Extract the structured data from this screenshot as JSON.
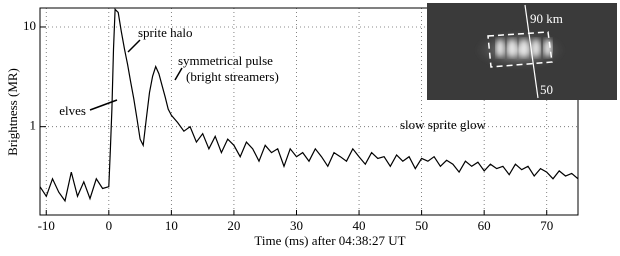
{
  "chart_data": {
    "type": "line",
    "xlabel": "Time (ms) after 04:38:27 UT",
    "ylabel": "Brightness (MR)",
    "x": [
      -11,
      -10,
      -9,
      -8,
      -7,
      -6,
      -5,
      -4,
      -3,
      -2,
      -1,
      0,
      0.25,
      0.5,
      0.75,
      1,
      1.5,
      2,
      2.5,
      3,
      3.5,
      4,
      4.5,
      5,
      5.5,
      6,
      6.5,
      7,
      7.5,
      8,
      8.5,
      9,
      9.5,
      10,
      11,
      12,
      13,
      14,
      15,
      16,
      17,
      18,
      19,
      20,
      21,
      22,
      23,
      24,
      25,
      26,
      27,
      28,
      29,
      30,
      31,
      32,
      33,
      34,
      35,
      36,
      37,
      38,
      39,
      40,
      41,
      42,
      43,
      44,
      45,
      46,
      47,
      48,
      49,
      50,
      51,
      52,
      53,
      54,
      55,
      56,
      57,
      58,
      59,
      60,
      61,
      62,
      63,
      64,
      65,
      66,
      67,
      68,
      69,
      70,
      71,
      72,
      73,
      74,
      75
    ],
    "values": [
      0.25,
      0.2,
      0.3,
      0.22,
      0.18,
      0.35,
      0.2,
      0.28,
      0.19,
      0.3,
      0.24,
      0.25,
      0.6,
      1.5,
      6,
      15,
      14,
      9,
      6,
      4.2,
      2.8,
      1.9,
      1.2,
      0.75,
      0.65,
      1.2,
      2.2,
      3.2,
      4,
      3.4,
      2.6,
      2,
      1.5,
      1.3,
      1.1,
      0.9,
      1.0,
      0.7,
      0.85,
      0.6,
      0.8,
      0.55,
      0.75,
      0.65,
      0.5,
      0.7,
      0.6,
      0.45,
      0.65,
      0.55,
      0.6,
      0.4,
      0.6,
      0.5,
      0.55,
      0.45,
      0.6,
      0.5,
      0.4,
      0.55,
      0.5,
      0.45,
      0.6,
      0.5,
      0.42,
      0.55,
      0.48,
      0.5,
      0.4,
      0.52,
      0.45,
      0.5,
      0.38,
      0.48,
      0.45,
      0.5,
      0.4,
      0.46,
      0.42,
      0.35,
      0.45,
      0.4,
      0.44,
      0.36,
      0.42,
      0.38,
      0.4,
      0.33,
      0.42,
      0.37,
      0.4,
      0.32,
      0.38,
      0.35,
      0.3,
      0.36,
      0.32,
      0.34,
      0.3
    ],
    "color": "#000000",
    "xlim": [
      -11,
      75
    ],
    "xticks": [
      -10,
      0,
      10,
      20,
      30,
      40,
      50,
      60,
      70
    ],
    "ylim": [
      0.13,
      15.5
    ],
    "yticks": [
      1,
      10
    ],
    "ylog": true,
    "grid": true,
    "annotations": [
      "sprite halo",
      "symmetrical pulse",
      "(bright streamers)",
      "elves",
      "slow sprite glow"
    ],
    "inset_labels": [
      "90 km",
      "50"
    ]
  }
}
